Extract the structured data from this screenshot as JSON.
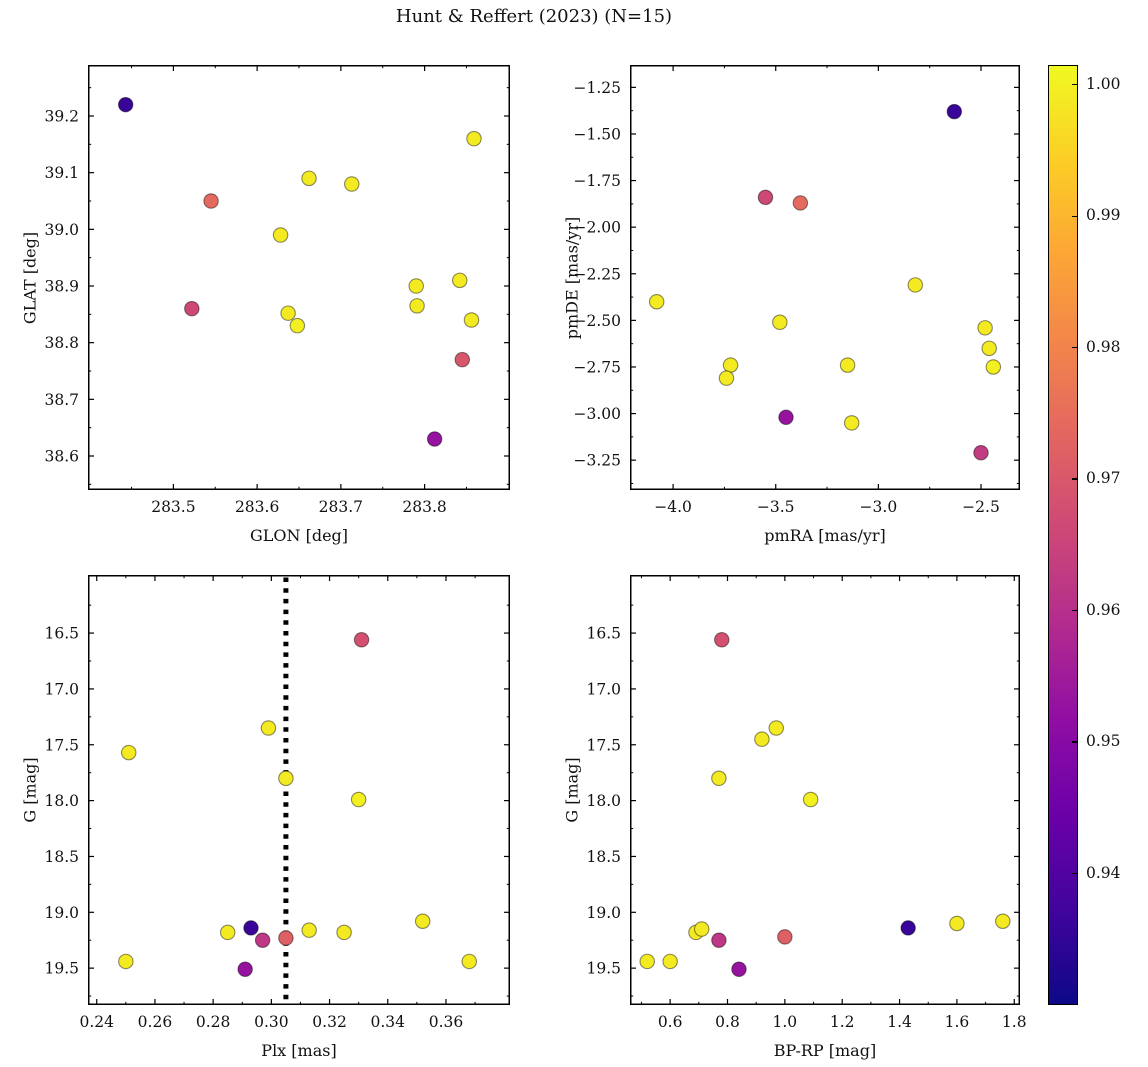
{
  "title": "Hunt & Reffert (2023) (N=15)",
  "colorbar": {
    "colormap": "plasma",
    "vmin": 0.93,
    "vmax": 1.0015,
    "tick_vals": [
      1.0,
      0.99,
      0.98,
      0.97,
      0.96,
      0.95,
      0.94
    ],
    "tick_labels": [
      "1.00",
      "0.99",
      "0.98",
      "0.97",
      "0.96",
      "0.95",
      "0.94"
    ],
    "colormap_stops": [
      "#0d0887",
      "#41049d",
      "#6a00a8",
      "#8f0da4",
      "#b12a90",
      "#cc4778",
      "#e16462",
      "#f2844b",
      "#fca636",
      "#fcce25",
      "#f0f921"
    ]
  },
  "chart_data": [
    {
      "type": "scatter",
      "name": "glat-vs-glon",
      "xlabel": "GLON [deg]",
      "ylabel": "GLAT [deg]",
      "xlim": [
        283.398,
        283.902
      ],
      "ylim_top": 39.29,
      "ylim_bottom": 38.54,
      "xtick_vals": [
        283.5,
        283.6,
        283.7,
        283.8
      ],
      "xtick_labels": [
        "283.5",
        "283.6",
        "283.7",
        "283.8"
      ],
      "ytick_vals": [
        39.2,
        39.1,
        39.0,
        38.9,
        38.8,
        38.7,
        38.6
      ],
      "ytick_labels": [
        "39.2",
        "39.1",
        "39.0",
        "38.9",
        "38.8",
        "38.7",
        "38.6"
      ],
      "points": [
        {
          "x": 283.443,
          "y": 39.22,
          "c": 0.936
        },
        {
          "x": 283.859,
          "y": 39.16,
          "c": 0.999
        },
        {
          "x": 283.662,
          "y": 39.09,
          "c": 0.999
        },
        {
          "x": 283.713,
          "y": 39.08,
          "c": 0.999
        },
        {
          "x": 283.545,
          "y": 39.05,
          "c": 0.974
        },
        {
          "x": 283.628,
          "y": 38.99,
          "c": 0.999
        },
        {
          "x": 283.842,
          "y": 38.91,
          "c": 0.999
        },
        {
          "x": 283.79,
          "y": 38.9,
          "c": 0.999
        },
        {
          "x": 283.791,
          "y": 38.865,
          "c": 0.999
        },
        {
          "x": 283.522,
          "y": 38.86,
          "c": 0.966
        },
        {
          "x": 283.637,
          "y": 38.852,
          "c": 0.999
        },
        {
          "x": 283.648,
          "y": 38.83,
          "c": 1.0
        },
        {
          "x": 283.856,
          "y": 38.84,
          "c": 0.999
        },
        {
          "x": 283.845,
          "y": 38.77,
          "c": 0.97
        },
        {
          "x": 283.812,
          "y": 38.63,
          "c": 0.953
        }
      ]
    },
    {
      "type": "scatter",
      "name": "pmde-vs-pmra",
      "xlabel": "pmRA [mas/yr]",
      "ylabel": "pmDE [mas/yr]",
      "xlim": [
        -4.21,
        -2.31
      ],
      "ylim_top": -1.13,
      "ylim_bottom": -3.41,
      "xtick_vals": [
        -4.0,
        -3.5,
        -3.0,
        -2.5
      ],
      "xtick_labels": [
        "−4.0",
        "−3.5",
        "−3.0",
        "−2.5"
      ],
      "ytick_vals": [
        -1.25,
        -1.5,
        -1.75,
        -2.0,
        -2.25,
        -2.5,
        -2.75,
        -3.0,
        -3.25
      ],
      "ytick_labels": [
        "−1.25",
        "−1.50",
        "−1.75",
        "−2.00",
        "−2.25",
        "−2.50",
        "−2.75",
        "−3.00",
        "−3.25"
      ],
      "points": [
        {
          "x": -2.63,
          "y": -1.38,
          "c": 0.936
        },
        {
          "x": -3.55,
          "y": -1.84,
          "c": 0.966
        },
        {
          "x": -3.38,
          "y": -1.87,
          "c": 0.974
        },
        {
          "x": -2.82,
          "y": -2.31,
          "c": 0.999
        },
        {
          "x": -4.08,
          "y": -2.4,
          "c": 0.999
        },
        {
          "x": -3.48,
          "y": -2.51,
          "c": 0.999
        },
        {
          "x": -2.48,
          "y": -2.54,
          "c": 0.999
        },
        {
          "x": -2.46,
          "y": -2.65,
          "c": 0.999
        },
        {
          "x": -3.72,
          "y": -2.74,
          "c": 0.999
        },
        {
          "x": -3.15,
          "y": -2.74,
          "c": 0.999
        },
        {
          "x": -2.44,
          "y": -2.75,
          "c": 1.0
        },
        {
          "x": -3.74,
          "y": -2.81,
          "c": 0.999
        },
        {
          "x": -3.45,
          "y": -3.02,
          "c": 0.953
        },
        {
          "x": -3.13,
          "y": -3.05,
          "c": 0.999
        },
        {
          "x": -2.5,
          "y": -3.21,
          "c": 0.963
        }
      ]
    },
    {
      "type": "scatter",
      "name": "g-vs-plx",
      "xlabel": "Plx [mas]",
      "ylabel": "G [mag]",
      "y_inverted": true,
      "xlim": [
        0.237,
        0.382
      ],
      "ylim_top": 15.98,
      "ylim_bottom": 19.83,
      "xtick_vals": [
        0.24,
        0.26,
        0.28,
        0.3,
        0.32,
        0.34,
        0.36
      ],
      "xtick_labels": [
        "0.24",
        "0.26",
        "0.28",
        "0.30",
        "0.32",
        "0.34",
        "0.36"
      ],
      "ytick_vals": [
        16.5,
        17.0,
        17.5,
        18.0,
        18.5,
        19.0,
        19.5
      ],
      "ytick_labels": [
        "16.5",
        "17.0",
        "17.5",
        "18.0",
        "18.5",
        "19.0",
        "19.5"
      ],
      "vline": {
        "x": 0.305,
        "style": "dotted",
        "color": "#000000"
      },
      "points": [
        {
          "x": 0.331,
          "y": 16.56,
          "c": 0.968
        },
        {
          "x": 0.299,
          "y": 17.35,
          "c": 0.999
        },
        {
          "x": 0.251,
          "y": 17.57,
          "c": 0.999
        },
        {
          "x": 0.305,
          "y": 17.8,
          "c": 0.999
        },
        {
          "x": 0.33,
          "y": 17.99,
          "c": 1.0
        },
        {
          "x": 0.352,
          "y": 19.08,
          "c": 0.999
        },
        {
          "x": 0.293,
          "y": 19.14,
          "c": 0.936
        },
        {
          "x": 0.285,
          "y": 19.18,
          "c": 0.999
        },
        {
          "x": 0.313,
          "y": 19.16,
          "c": 0.999
        },
        {
          "x": 0.325,
          "y": 19.18,
          "c": 0.999
        },
        {
          "x": 0.305,
          "y": 19.23,
          "c": 0.972
        },
        {
          "x": 0.297,
          "y": 19.25,
          "c": 0.962
        },
        {
          "x": 0.25,
          "y": 19.44,
          "c": 0.999
        },
        {
          "x": 0.368,
          "y": 19.44,
          "c": 0.999
        },
        {
          "x": 0.291,
          "y": 19.51,
          "c": 0.953
        }
      ]
    },
    {
      "type": "scatter",
      "name": "g-vs-bp-rp",
      "xlabel": "BP-RP [mag]",
      "ylabel": "G [mag]",
      "y_inverted": true,
      "xlim": [
        0.46,
        1.82
      ],
      "ylim_top": 15.98,
      "ylim_bottom": 19.83,
      "xtick_vals": [
        0.6,
        0.8,
        1.0,
        1.2,
        1.4,
        1.6,
        1.8
      ],
      "xtick_labels": [
        "0.6",
        "0.8",
        "1.0",
        "1.2",
        "1.4",
        "1.6",
        "1.8"
      ],
      "ytick_vals": [
        16.5,
        17.0,
        17.5,
        18.0,
        18.5,
        19.0,
        19.5
      ],
      "ytick_labels": [
        "16.5",
        "17.0",
        "17.5",
        "18.0",
        "18.5",
        "19.0",
        "19.5"
      ],
      "points": [
        {
          "x": 0.78,
          "y": 16.56,
          "c": 0.968
        },
        {
          "x": 0.97,
          "y": 17.35,
          "c": 0.999
        },
        {
          "x": 0.92,
          "y": 17.45,
          "c": 0.999
        },
        {
          "x": 0.77,
          "y": 17.8,
          "c": 0.999
        },
        {
          "x": 1.09,
          "y": 17.99,
          "c": 1.0
        },
        {
          "x": 1.43,
          "y": 19.14,
          "c": 0.936
        },
        {
          "x": 1.6,
          "y": 19.1,
          "c": 0.999
        },
        {
          "x": 1.76,
          "y": 19.08,
          "c": 0.999
        },
        {
          "x": 0.69,
          "y": 19.18,
          "c": 0.999
        },
        {
          "x": 0.71,
          "y": 19.15,
          "c": 0.999
        },
        {
          "x": 0.77,
          "y": 19.25,
          "c": 0.962
        },
        {
          "x": 1.0,
          "y": 19.22,
          "c": 0.972
        },
        {
          "x": 0.52,
          "y": 19.44,
          "c": 0.999
        },
        {
          "x": 0.6,
          "y": 19.44,
          "c": 0.999
        },
        {
          "x": 0.84,
          "y": 19.51,
          "c": 0.953
        }
      ]
    }
  ]
}
